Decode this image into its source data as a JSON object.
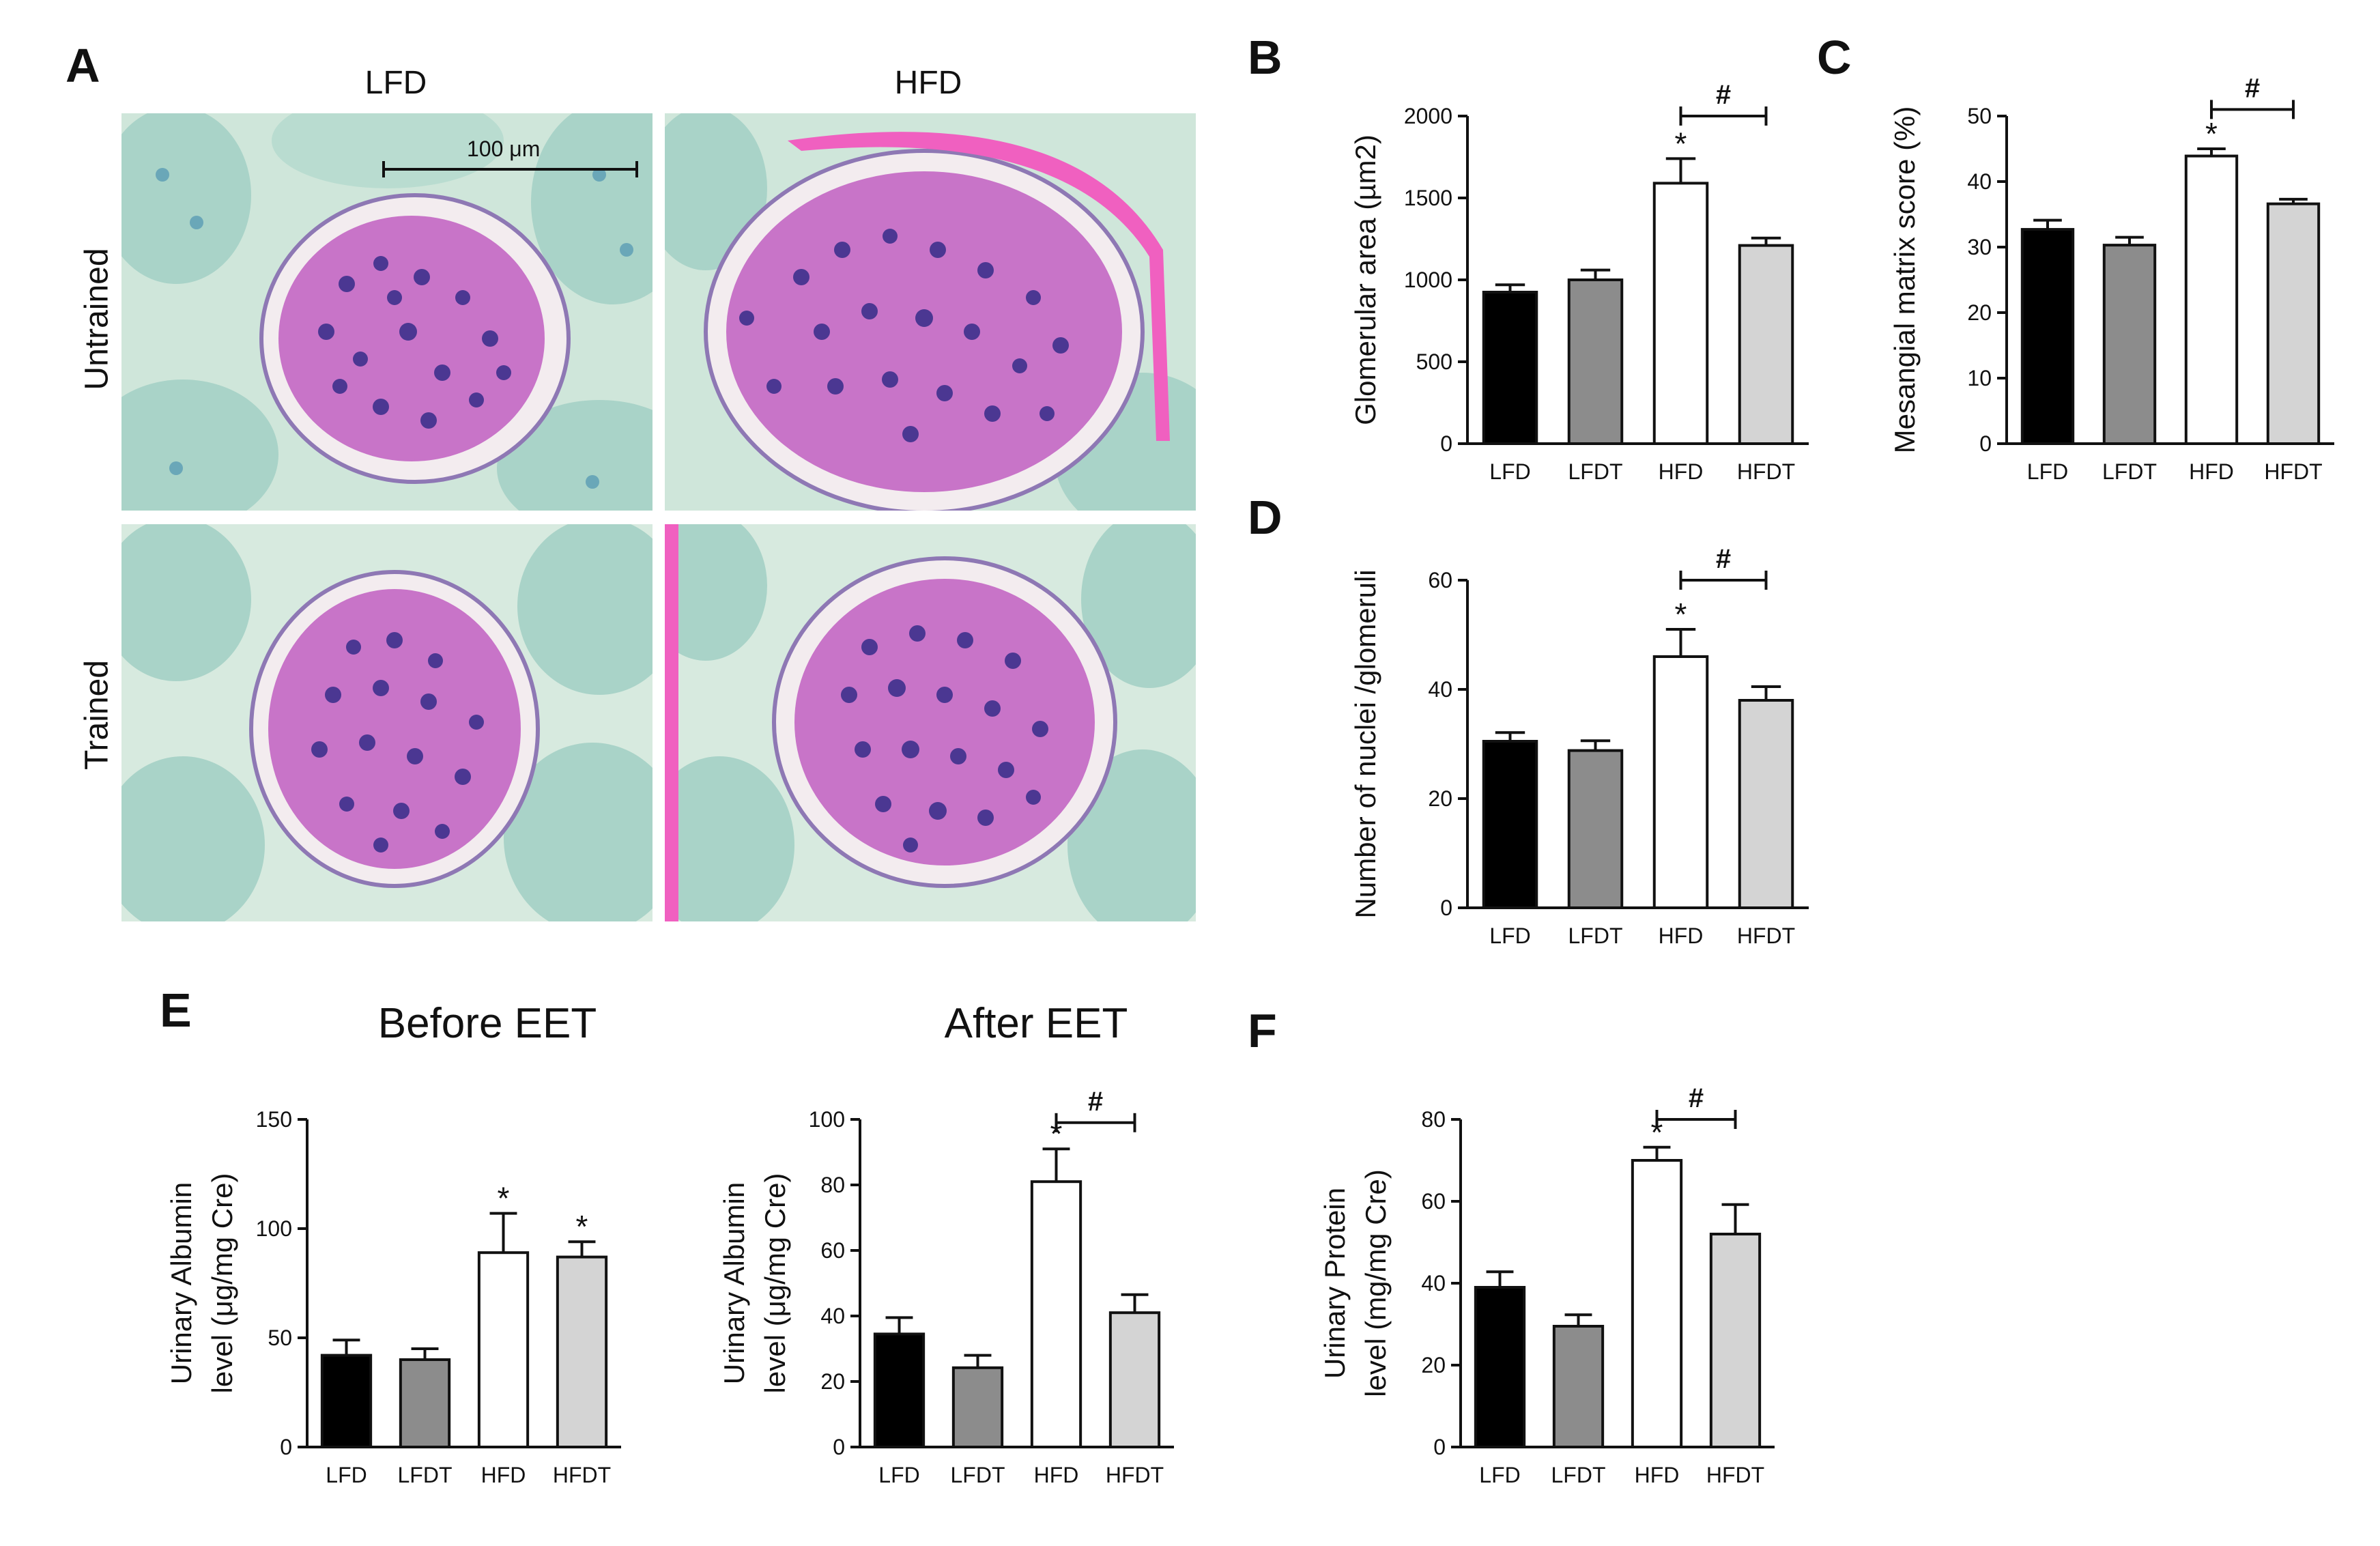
{
  "panels": {
    "A": "A",
    "B": "B",
    "C": "C",
    "D": "D",
    "E": "E",
    "F": "F"
  },
  "micrograph": {
    "columns": [
      "LFD",
      "HFD"
    ],
    "rows": [
      "Untrained",
      "Trained"
    ],
    "scale_label": "100 μm",
    "colors": {
      "tissue_bg": "#cfe6da",
      "tubule": "#9cc9c0",
      "glomerulus": "#c868c8",
      "nuclei": "#5a3a9a",
      "capsule": "#f060c0"
    }
  },
  "titles": {
    "before": "Before EET",
    "after": "After EET"
  },
  "colors": {
    "LFD": "#000000",
    "LFDT": "#8c8c8c",
    "HFD": "#ffffff",
    "HFDT": "#d4d4d4"
  },
  "chart_data": [
    {
      "id": "B",
      "type": "bar",
      "categories": [
        "LFD",
        "LFDT",
        "HFD",
        "HFDT"
      ],
      "values": [
        925,
        1000,
        1590,
        1210
      ],
      "errors": [
        45,
        60,
        150,
        45
      ],
      "ylabel": "Glomerular area (µm2)",
      "ylim": [
        0,
        2000
      ],
      "yticks": [
        0,
        500,
        1000,
        1500,
        2000
      ],
      "stars": [
        "",
        "",
        "*",
        ""
      ],
      "bracket": {
        "from": 2,
        "to": 3,
        "label": "#",
        "value": 2000
      }
    },
    {
      "id": "C",
      "type": "bar",
      "categories": [
        "LFD",
        "LFDT",
        "HFD",
        "HFDT"
      ],
      "values": [
        32.7,
        30.3,
        43.9,
        36.6
      ],
      "errors": [
        1.4,
        1.2,
        1.1,
        0.7
      ],
      "ylabel": "Mesangial matrix score (%)",
      "ylim": [
        0,
        50
      ],
      "yticks": [
        0,
        10,
        20,
        30,
        40,
        50
      ],
      "stars": [
        "",
        "",
        "*",
        ""
      ],
      "bracket": {
        "from": 2,
        "to": 3,
        "label": "#",
        "value": 51
      }
    },
    {
      "id": "D",
      "type": "bar",
      "categories": [
        "LFD",
        "LFDT",
        "HFD",
        "HFDT"
      ],
      "values": [
        30.5,
        28.8,
        46.0,
        38.0
      ],
      "errors": [
        1.6,
        1.8,
        5.0,
        2.5
      ],
      "ylabel": "Number of nuclei /glomeruli",
      "ylim": [
        0,
        60
      ],
      "yticks": [
        0,
        20,
        40,
        60
      ],
      "stars": [
        "",
        "",
        "*",
        ""
      ],
      "bracket": {
        "from": 2,
        "to": 3,
        "label": "#",
        "value": 60
      }
    },
    {
      "id": "E1",
      "type": "bar",
      "title": "Before EET",
      "categories": [
        "LFD",
        "LFDT",
        "HFD",
        "HFDT"
      ],
      "values": [
        42,
        40,
        89,
        87
      ],
      "errors": [
        7,
        5,
        18,
        7
      ],
      "ylabel": [
        "Urinary Albumin",
        "level (μg/mg Cre)"
      ],
      "ylim": [
        0,
        150
      ],
      "yticks": [
        0,
        50,
        100,
        150
      ],
      "stars": [
        "",
        "",
        "*",
        "*"
      ]
    },
    {
      "id": "E2",
      "type": "bar",
      "title": "After EET",
      "categories": [
        "LFD",
        "LFDT",
        "HFD",
        "HFDT"
      ],
      "values": [
        34.5,
        24.2,
        81.0,
        41.0
      ],
      "errors": [
        5.0,
        3.8,
        10.0,
        5.5
      ],
      "ylabel": [
        "Urinary Albumin",
        "level (μg/mg Cre)"
      ],
      "ylim": [
        0,
        100
      ],
      "yticks": [
        0,
        20,
        40,
        60,
        80,
        100
      ],
      "stars": [
        "",
        "",
        "*",
        ""
      ],
      "bracket": {
        "from": 2,
        "to": 3,
        "label": "#",
        "value": 99
      }
    },
    {
      "id": "F",
      "type": "bar",
      "categories": [
        "LFD",
        "LFDT",
        "HFD",
        "HFDT"
      ],
      "values": [
        39,
        29.5,
        70,
        52
      ],
      "errors": [
        3.8,
        2.8,
        3.2,
        7.2
      ],
      "ylabel": [
        "Urinary Protein",
        "level (mg/mg Cre)"
      ],
      "ylim": [
        0,
        80
      ],
      "yticks": [
        0,
        20,
        40,
        60,
        80
      ],
      "stars": [
        "",
        "",
        "*",
        ""
      ],
      "bracket": {
        "from": 2,
        "to": 3,
        "label": "#",
        "value": 80
      }
    }
  ]
}
